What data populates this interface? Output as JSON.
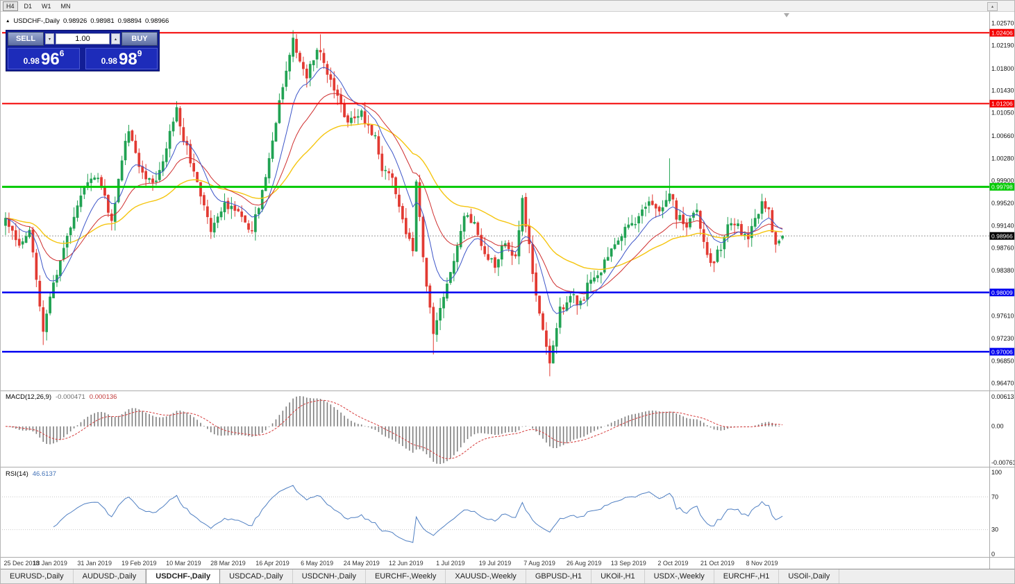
{
  "window": {
    "toolbar": {
      "timeframes": [
        {
          "label": "H4",
          "pressed": true
        },
        {
          "label": "D1",
          "pressed": false
        },
        {
          "label": "W1",
          "pressed": false
        },
        {
          "label": "MN",
          "pressed": false
        }
      ],
      "scroll_up_icon": "▴"
    },
    "chart_header": {
      "collapse_icon": "▲",
      "title": "USDCHF-,Daily",
      "open": "0.98926",
      "high": "0.98981",
      "low": "0.98894",
      "close": "0.98966"
    },
    "trade_panel": {
      "sell_label": "SELL",
      "buy_label": "BUY",
      "lot_value": "1.00",
      "lot_down_icon": "▾",
      "lot_up_icon": "▴",
      "sell_price": {
        "prefix": "0.98",
        "big": "96",
        "sup": "6"
      },
      "buy_price": {
        "prefix": "0.98",
        "big": "98",
        "sup": "9"
      }
    },
    "tabs": [
      {
        "label": "EURUSD-,Daily",
        "active": false
      },
      {
        "label": "AUDUSD-,Daily",
        "active": false
      },
      {
        "label": "USDCHF-,Daily",
        "active": true
      },
      {
        "label": "USDCAD-,Daily",
        "active": false
      },
      {
        "label": "USDCNH-,Daily",
        "active": false
      },
      {
        "label": "EURCHF-,Weekly",
        "active": false
      },
      {
        "label": "XAUUSD-,Weekly",
        "active": false
      },
      {
        "label": "GBPUSD-,H1",
        "active": false
      },
      {
        "label": "UKOil-,H1",
        "active": false
      },
      {
        "label": "USDX-,Weekly",
        "active": false
      },
      {
        "label": "EURCHF-,H1",
        "active": false
      },
      {
        "label": "USOil-,Daily",
        "active": false
      }
    ]
  },
  "chart_data": {
    "type": "candlestick",
    "symbol": "USDCHF",
    "timeframe": "Daily",
    "last_ohlc": {
      "open": 0.98926,
      "high": 0.98981,
      "low": 0.98894,
      "close": 0.98966
    },
    "price_range": {
      "top": 1.0262,
      "bottom": 0.9642
    },
    "price_axis_ticks": [
      "1.02570",
      "1.02190",
      "1.01800",
      "1.01430",
      "1.01050",
      "1.00660",
      "1.00280",
      "0.99900",
      "0.99520",
      "0.99140",
      "0.98760",
      "0.98380",
      "0.97610",
      "0.97230",
      "0.96850",
      "0.96470"
    ],
    "current_price": {
      "label": "0.98966",
      "price": 0.98966
    },
    "levels": [
      {
        "price": 1.02406,
        "label": "1.02406",
        "color": "#f40000",
        "width": 2
      },
      {
        "price": 1.01206,
        "label": "1.01206",
        "color": "#f40000",
        "width": 2
      },
      {
        "price": 0.99798,
        "label": "0.99798",
        "color": "#00ca00",
        "width": 3
      },
      {
        "price": 0.98009,
        "label": "0.98009",
        "color": "#0000f0",
        "width": 2.5
      },
      {
        "price": 0.97006,
        "label": "0.97006",
        "color": "#0000f0",
        "width": 2.5
      }
    ],
    "x_labels": [
      "25 Dec 2018",
      "13 Jan 2019",
      "31 Jan 2019",
      "19 Feb 2019",
      "10 Mar 2019",
      "28 Mar 2019",
      "16 Apr 2019",
      "6 May 2019",
      "24 May 2019",
      "12 Jun 2019",
      "1 Jul 2019",
      "19 Jul 2019",
      "7 Aug 2019",
      "26 Aug 2019",
      "13 Sep 2019",
      "2 Oct 2019",
      "21 Oct 2019",
      "8 Nov 2019"
    ],
    "label_step": 13,
    "candle_count": 228,
    "seed": 12,
    "close_anchors": [
      [
        0,
        0.993
      ],
      [
        4,
        0.988
      ],
      [
        7,
        0.991
      ],
      [
        11,
        0.974
      ],
      [
        13,
        0.98
      ],
      [
        17,
        0.9875
      ],
      [
        20,
        0.9935
      ],
      [
        25,
        1.0
      ],
      [
        28,
        0.9985
      ],
      [
        31,
        0.992
      ],
      [
        34,
        1.003
      ],
      [
        36,
        1.008
      ],
      [
        38,
        1.004
      ],
      [
        40,
        1.0
      ],
      [
        44,
        0.999
      ],
      [
        47,
        1.005
      ],
      [
        50,
        1.011
      ],
      [
        52,
        1.006
      ],
      [
        55,
        1.001
      ],
      [
        57,
        0.997
      ],
      [
        60,
        0.9905
      ],
      [
        64,
        0.995
      ],
      [
        68,
        0.9935
      ],
      [
        72,
        0.9905
      ],
      [
        76,
        0.999
      ],
      [
        80,
        1.012
      ],
      [
        82,
        1.018
      ],
      [
        84,
        1.0225
      ],
      [
        86,
        1.0185
      ],
      [
        88,
        1.017
      ],
      [
        90,
        1.0195
      ],
      [
        92,
        1.0215
      ],
      [
        94,
        1.0175
      ],
      [
        96,
        1.015
      ],
      [
        100,
        1.009
      ],
      [
        104,
        1.0105
      ],
      [
        108,
        1.006
      ],
      [
        110,
        1.001
      ],
      [
        113,
        0.999
      ],
      [
        116,
        0.9925
      ],
      [
        119,
        0.987
      ],
      [
        120,
        0.9985
      ],
      [
        122,
        0.986
      ],
      [
        125,
        0.973
      ],
      [
        128,
        0.979
      ],
      [
        131,
        0.985
      ],
      [
        134,
        0.9935
      ],
      [
        137,
        0.992
      ],
      [
        140,
        0.987
      ],
      [
        143,
        0.9845
      ],
      [
        146,
        0.989
      ],
      [
        149,
        0.986
      ],
      [
        151,
        0.996
      ],
      [
        154,
        0.984
      ],
      [
        156,
        0.976
      ],
      [
        159,
        0.968
      ],
      [
        162,
        0.977
      ],
      [
        165,
        0.98
      ],
      [
        168,
        0.978
      ],
      [
        171,
        0.9825
      ],
      [
        174,
        0.984
      ],
      [
        177,
        0.987
      ],
      [
        180,
        0.99
      ],
      [
        184,
        0.992
      ],
      [
        188,
        0.9955
      ],
      [
        192,
        0.994
      ],
      [
        194,
        0.9975
      ],
      [
        196,
        0.993
      ],
      [
        199,
        0.9915
      ],
      [
        202,
        0.9935
      ],
      [
        206,
        0.9845
      ],
      [
        209,
        0.988
      ],
      [
        212,
        0.9925
      ],
      [
        215,
        0.9905
      ],
      [
        217,
        0.9895
      ],
      [
        219,
        0.992
      ],
      [
        221,
        0.996
      ],
      [
        223,
        0.9935
      ],
      [
        225,
        0.9885
      ],
      [
        227,
        0.98966
      ]
    ],
    "wick_overrides": {
      "11": {
        "low": 0.9712
      },
      "84": {
        "high": 1.0245
      },
      "92": {
        "high": 1.0238
      },
      "120": {
        "high": 0.9992
      },
      "125": {
        "low": 0.9696
      },
      "159": {
        "low": 0.9659
      },
      "194": {
        "high": 1.0028
      },
      "221": {
        "high": 0.9968
      }
    },
    "ma_periods": {
      "fast": 10,
      "mid": 22,
      "slow": 48
    },
    "macd": {
      "title": "MACD(12,26,9)",
      "main_value": "-0.000471",
      "signal_value": "0.000136",
      "axis_max": "0.00613",
      "axis_zero": "0.00",
      "axis_min": "-0.007612",
      "fast": 12,
      "slow": 26,
      "signal": 9
    },
    "rsi": {
      "title": "RSI(14)",
      "value": "46.6137",
      "period": 14,
      "axis_labels": [
        {
          "text": "100",
          "value": 100
        },
        {
          "text": "70",
          "value": 70
        },
        {
          "text": "30",
          "value": 30
        },
        {
          "text": "0",
          "value": 0
        }
      ],
      "levels": [
        70,
        30
      ]
    }
  },
  "colors": {
    "up": "#21a253",
    "down": "#e23a32",
    "ma_fast": "#3c55c8",
    "ma_mid": "#cf2e2e",
    "ma_slow": "#f5c50f",
    "macd_hist": "#7e7e7e",
    "macd_signal": "#d63a3a",
    "rsi_line": "#4f7fc2",
    "current_line": "#9a9a9a",
    "separator": "#ababab"
  }
}
